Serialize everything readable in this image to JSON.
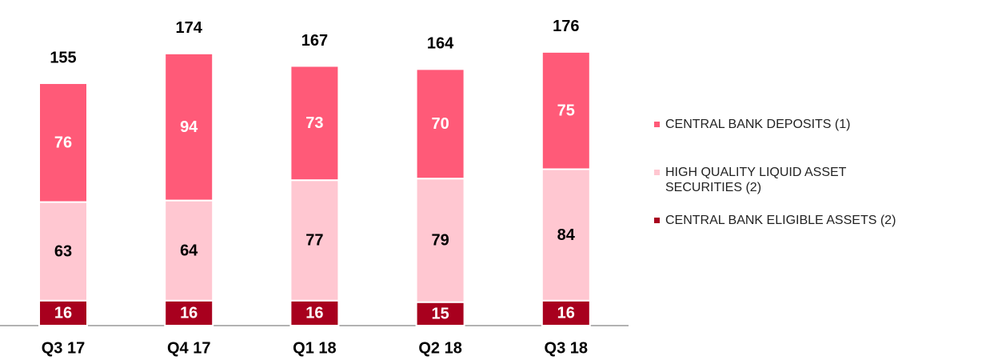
{
  "chart_data": {
    "type": "stacked_bar",
    "categories": [
      "Q3 17",
      "Q4 17",
      "Q1 18",
      "Q2 18",
      "Q3 18"
    ],
    "series": [
      {
        "name": "CENTRAL BANK DEPOSITS (1)",
        "color": "#ff5a78",
        "values": [
          76,
          94,
          73,
          70,
          75
        ]
      },
      {
        "name": "HIGH QUALITY LIQUID ASSET SECURITIES (2)",
        "color": "#ffc7d1",
        "values": [
          63,
          64,
          77,
          79,
          84
        ]
      },
      {
        "name": "CENTRAL BANK ELIGIBLE ASSETS (2)",
        "color": "#a8001e",
        "values": [
          16,
          16,
          16,
          15,
          16
        ]
      }
    ],
    "totals": [
      155,
      174,
      167,
      164,
      176
    ],
    "label_colors": [
      "#ffffff",
      "#000000",
      "#ffffff"
    ]
  }
}
